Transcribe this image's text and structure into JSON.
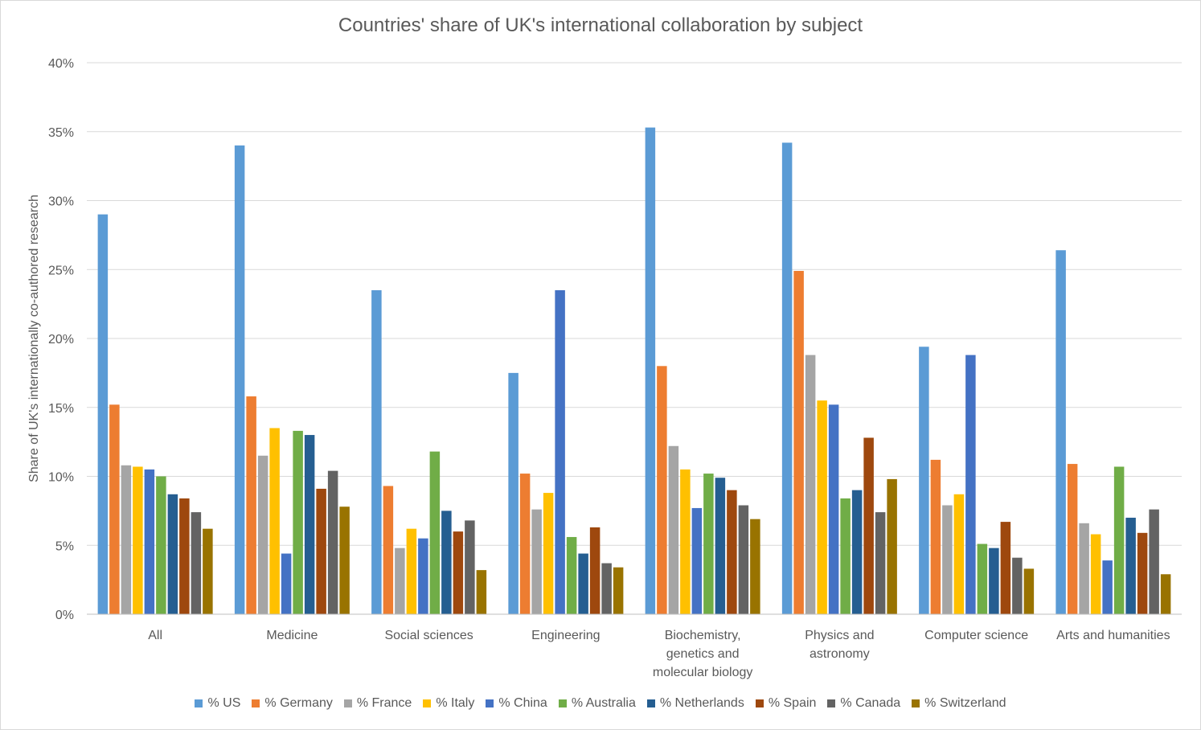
{
  "chart_data": {
    "type": "bar",
    "title": "Countries' share of UK's international collaboration by subject",
    "xlabel": "",
    "ylabel": "Share of UK's internationally co-authored research",
    "ylim": [
      0,
      40
    ],
    "y_ticks": [
      "0%",
      "5%",
      "10%",
      "15%",
      "20%",
      "25%",
      "30%",
      "35%",
      "40%"
    ],
    "y_tick_values": [
      0,
      5,
      10,
      15,
      20,
      25,
      30,
      35,
      40
    ],
    "grid": true,
    "legend_position": "bottom",
    "categories": [
      "All",
      "Medicine",
      "Social sciences",
      "Engineering",
      "Biochemistry, genetics and molecular biology",
      "Physics and astronomy",
      "Computer science",
      "Arts and humanities"
    ],
    "category_label_lines": [
      [
        "All"
      ],
      [
        "Medicine"
      ],
      [
        "Social sciences"
      ],
      [
        "Engineering"
      ],
      [
        "Biochemistry,",
        "genetics and",
        "molecular biology"
      ],
      [
        "Physics and",
        "astronomy"
      ],
      [
        "Computer science"
      ],
      [
        "Arts and humanities"
      ]
    ],
    "series": [
      {
        "name": "% US",
        "color": "#5B9BD5",
        "values": [
          29.0,
          34.0,
          23.5,
          17.5,
          35.3,
          34.2,
          19.4,
          26.4
        ]
      },
      {
        "name": "% Germany",
        "color": "#ED7D31",
        "values": [
          15.2,
          15.8,
          9.3,
          10.2,
          18.0,
          24.9,
          11.2,
          10.9
        ]
      },
      {
        "name": "% France",
        "color": "#A5A5A5",
        "values": [
          10.8,
          11.5,
          4.8,
          7.6,
          12.2,
          18.8,
          7.9,
          6.6
        ]
      },
      {
        "name": "% Italy",
        "color": "#FFC000",
        "values": [
          10.7,
          13.5,
          6.2,
          8.8,
          10.5,
          15.5,
          8.7,
          5.8
        ]
      },
      {
        "name": "% China",
        "color": "#4472C4",
        "values": [
          10.5,
          4.4,
          5.5,
          23.5,
          7.7,
          15.2,
          18.8,
          3.9
        ]
      },
      {
        "name": "% Australia",
        "color": "#70AD47",
        "values": [
          10.0,
          13.3,
          11.8,
          5.6,
          10.2,
          8.4,
          5.1,
          10.7
        ]
      },
      {
        "name": "% Netherlands",
        "color": "#255E91",
        "values": [
          8.7,
          13.0,
          7.5,
          4.4,
          9.9,
          9.0,
          4.8,
          7.0
        ]
      },
      {
        "name": "% Spain",
        "color": "#9E480E",
        "values": [
          8.4,
          9.1,
          6.0,
          6.3,
          9.0,
          12.8,
          6.7,
          5.9
        ]
      },
      {
        "name": "% Canada",
        "color": "#636363",
        "values": [
          7.4,
          10.4,
          6.8,
          3.7,
          7.9,
          7.4,
          4.1,
          7.6
        ]
      },
      {
        "name": "% Switzerland",
        "color": "#997300",
        "values": [
          6.2,
          7.8,
          3.2,
          3.4,
          6.9,
          9.8,
          3.3,
          2.9
        ]
      }
    ]
  }
}
